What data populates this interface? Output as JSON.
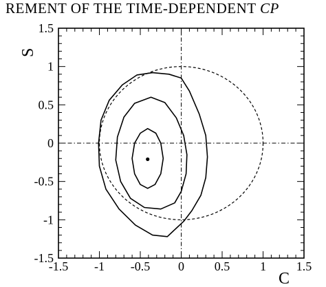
{
  "header": {
    "text": "REMENT OF THE TIME-DEPENDENT ",
    "italic": "CP"
  },
  "chart_data": {
    "type": "scatter",
    "title": "",
    "xlabel": "C",
    "ylabel": "S",
    "xlim": [
      -1.5,
      1.5
    ],
    "ylim": [
      -1.5,
      1.5
    ],
    "xticks": [
      -1.5,
      -1,
      -0.5,
      0,
      0.5,
      1,
      1.5
    ],
    "yticks": [
      -1.5,
      -1,
      -0.5,
      0,
      0.5,
      1,
      1.5
    ],
    "xtick_labels": [
      "-1.5",
      "-1",
      "-0.5",
      "0",
      "0.5",
      "1",
      "1.5"
    ],
    "ytick_labels": [
      "-1.5",
      "-1",
      "-0.5",
      "0",
      "0.5",
      "1",
      "1.5"
    ],
    "grid": false,
    "reference_lines": {
      "x": 0,
      "y": 0,
      "style": "dash-dot"
    },
    "physical_boundary": {
      "shape": "circle",
      "center": [
        0,
        0
      ],
      "radius": 1,
      "style": "dashed"
    },
    "best_fit_point": {
      "x": -0.41,
      "y": -0.21
    },
    "contours": [
      {
        "name": "",
        "points": [
          [
            -0.41,
            0.19
          ],
          [
            -0.31,
            0.13
          ],
          [
            -0.25,
            0.0
          ],
          [
            -0.22,
            -0.2
          ],
          [
            -0.25,
            -0.4
          ],
          [
            -0.32,
            -0.54
          ],
          [
            -0.41,
            -0.59
          ],
          [
            -0.5,
            -0.54
          ],
          [
            -0.57,
            -0.4
          ],
          [
            -0.6,
            -0.2
          ],
          [
            -0.57,
            0.0
          ],
          [
            -0.5,
            0.13
          ]
        ]
      },
      {
        "name": "",
        "points": [
          [
            -0.37,
            0.6
          ],
          [
            -0.2,
            0.53
          ],
          [
            -0.06,
            0.33
          ],
          [
            0.03,
            0.1
          ],
          [
            0.07,
            -0.15
          ],
          [
            0.06,
            -0.4
          ],
          [
            0.0,
            -0.63
          ],
          [
            -0.08,
            -0.78
          ],
          [
            -0.25,
            -0.86
          ],
          [
            -0.45,
            -0.84
          ],
          [
            -0.62,
            -0.72
          ],
          [
            -0.74,
            -0.5
          ],
          [
            -0.8,
            -0.22
          ],
          [
            -0.78,
            0.08
          ],
          [
            -0.7,
            0.34
          ],
          [
            -0.57,
            0.52
          ]
        ]
      },
      {
        "name": "",
        "points": [
          [
            -0.35,
            0.92
          ],
          [
            -0.15,
            0.9
          ],
          [
            0.0,
            0.85
          ],
          [
            0.1,
            0.68
          ],
          [
            0.22,
            0.38
          ],
          [
            0.3,
            0.1
          ],
          [
            0.32,
            -0.18
          ],
          [
            0.3,
            -0.45
          ],
          [
            0.24,
            -0.68
          ],
          [
            0.13,
            -0.88
          ],
          [
            0.03,
            -1.02
          ],
          [
            -0.1,
            -1.15
          ],
          [
            -0.17,
            -1.22
          ],
          [
            -0.35,
            -1.2
          ],
          [
            -0.56,
            -1.07
          ],
          [
            -0.76,
            -0.86
          ],
          [
            -0.92,
            -0.6
          ],
          [
            -1.0,
            -0.3
          ],
          [
            -1.01,
            0.0
          ],
          [
            -0.98,
            0.3
          ],
          [
            -0.88,
            0.56
          ],
          [
            -0.72,
            0.76
          ],
          [
            -0.54,
            0.89
          ]
        ]
      }
    ]
  }
}
